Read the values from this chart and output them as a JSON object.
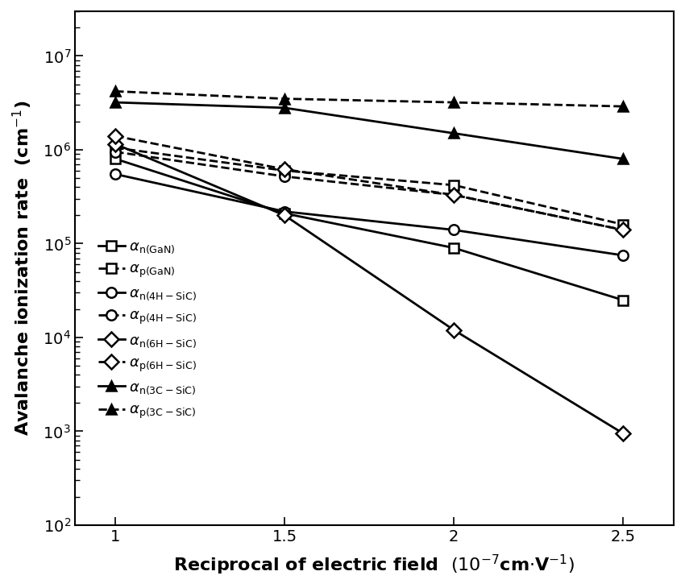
{
  "x": [
    1.0,
    1.5,
    2.0,
    2.5
  ],
  "series": [
    {
      "name": "alpha_n_GaN",
      "label_sub": "n(GaN)",
      "style": "solid",
      "marker": "s",
      "filled": false,
      "values": [
        800000.0,
        210000.0,
        90000.0,
        25000.0
      ]
    },
    {
      "name": "alpha_p_GaN",
      "label_sub": "p(GaN)",
      "style": "dashed",
      "marker": "s",
      "filled": false,
      "values": [
        1050000.0,
        600000.0,
        420000.0,
        160000.0
      ]
    },
    {
      "name": "alpha_n_4H_SiC",
      "label_sub": "n(4H-SiC)",
      "style": "solid",
      "marker": "o",
      "filled": false,
      "values": [
        550000.0,
        220000.0,
        140000.0,
        75000.0
      ]
    },
    {
      "name": "alpha_p_4H_SiC",
      "label_sub": "p(4H-SiC)",
      "style": "dashed",
      "marker": "o",
      "filled": false,
      "values": [
        950000.0,
        520000.0,
        330000.0,
        140000.0
      ]
    },
    {
      "name": "alpha_n_6H_SiC",
      "label_sub": "n(6H-SiC)",
      "style": "solid",
      "marker": "D",
      "filled": false,
      "values": [
        1150000.0,
        200000.0,
        12000.0,
        950.0
      ]
    },
    {
      "name": "alpha_p_6H_SiC",
      "label_sub": "p(6H-SiC)",
      "style": "dashed",
      "marker": "D",
      "filled": false,
      "values": [
        1400000.0,
        620000.0,
        330000.0,
        140000.0
      ]
    },
    {
      "name": "alpha_n_3C_SiC",
      "label_sub": "n(3C-SiC)",
      "style": "solid",
      "marker": "^",
      "filled": true,
      "values": [
        3200000.0,
        2800000.0,
        1500000.0,
        800000.0
      ]
    },
    {
      "name": "alpha_p_3C_SiC",
      "label_sub": "p(3C-SiC)",
      "style": "dashed",
      "marker": "^",
      "filled": true,
      "values": [
        4200000.0,
        3500000.0,
        3200000.0,
        2900000.0
      ]
    }
  ],
  "xlim": [
    0.88,
    2.65
  ],
  "ylim": [
    100.0,
    30000000.0
  ],
  "xticks": [
    1.0,
    1.5,
    2.0,
    2.5
  ],
  "linewidth": 2.0,
  "markersize": 9,
  "legend_fontsize": 13,
  "axis_label_fontsize": 16,
  "tick_fontsize": 14,
  "figwidth": 8.5,
  "figheight": 7.3
}
